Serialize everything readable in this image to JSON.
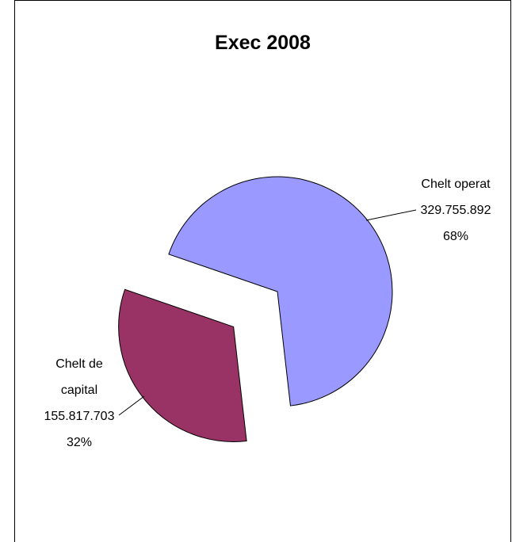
{
  "chart_data": {
    "type": "pie",
    "title": "Exec 2008",
    "categories": [
      "Chelt operat",
      "Chelt de capital"
    ],
    "values": [
      329755892,
      155817703
    ],
    "value_labels": [
      "329.755.892",
      "155.817.703"
    ],
    "percentages": [
      68,
      32
    ],
    "percentage_labels": [
      "68%",
      "32%"
    ],
    "colors": [
      "#9999ff",
      "#993366"
    ]
  }
}
